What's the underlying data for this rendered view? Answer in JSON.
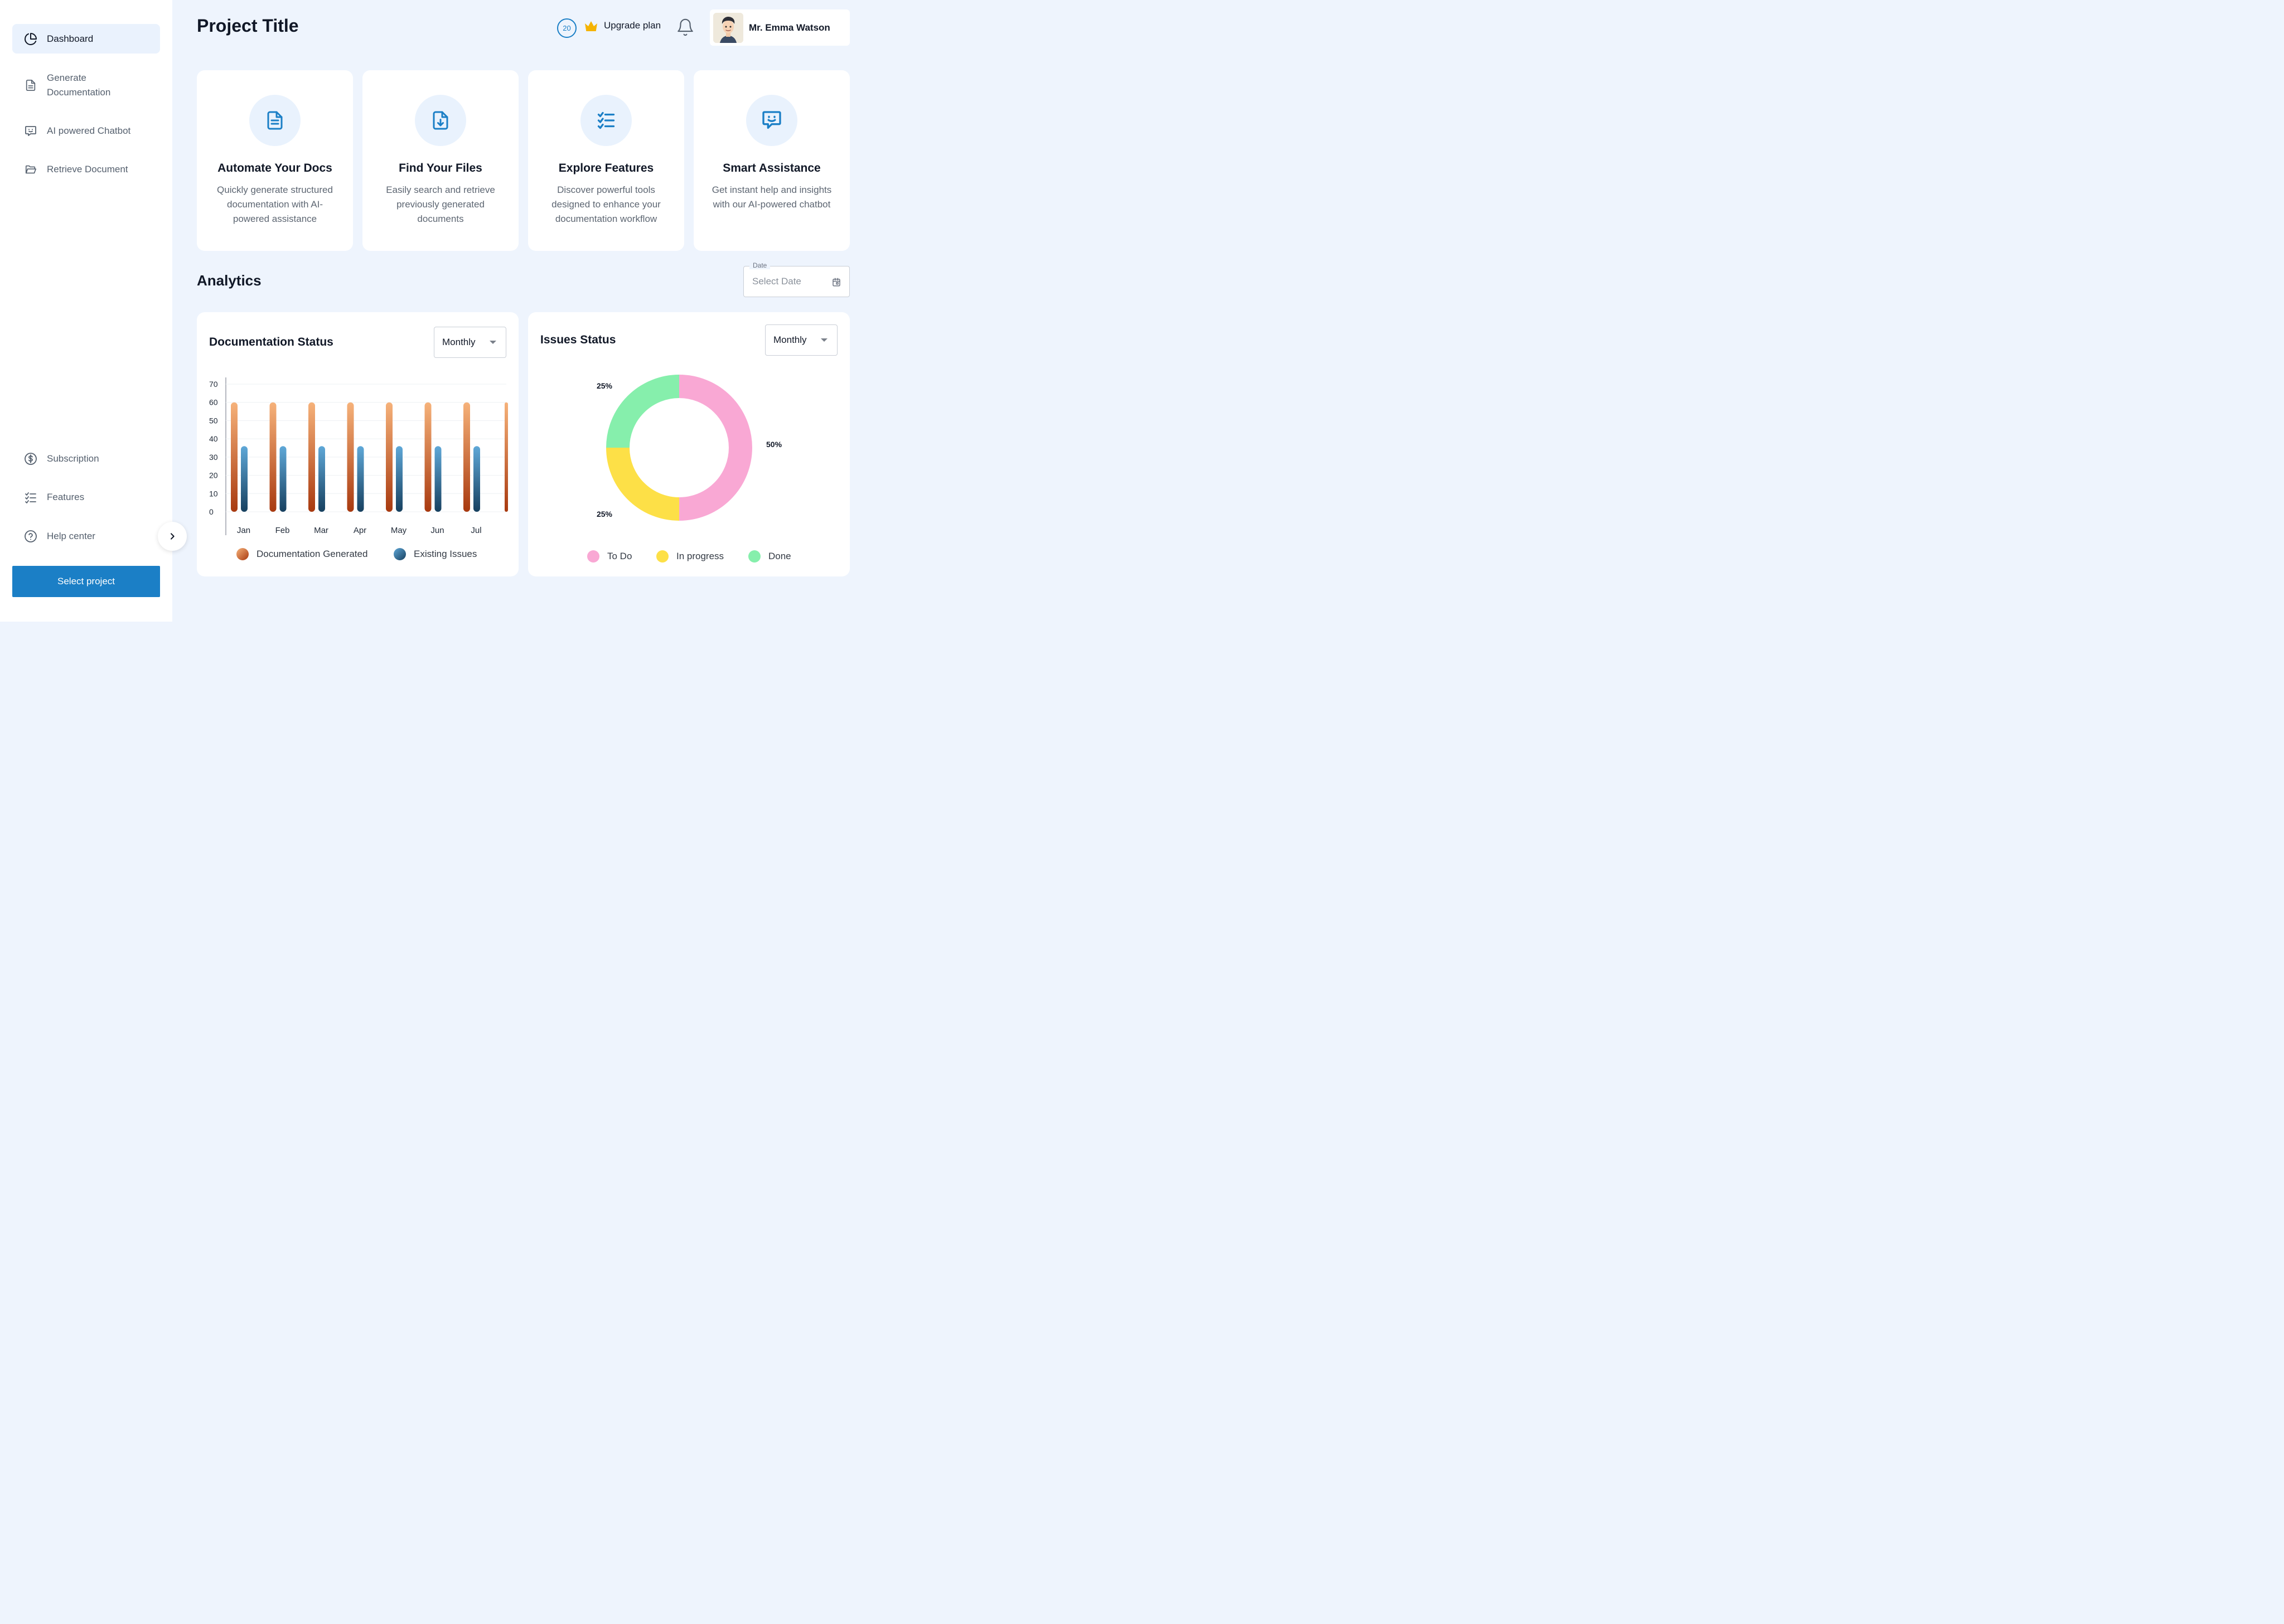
{
  "sidebar": {
    "items": [
      {
        "label": "Dashboard",
        "icon": "pie-chart-icon"
      },
      {
        "label": "Generate Documentation",
        "icon": "document-icon"
      },
      {
        "label": "AI powered Chatbot",
        "icon": "chat-smile-icon"
      },
      {
        "label": "Retrieve Document",
        "icon": "folder-open-icon"
      }
    ],
    "bottom_items": [
      {
        "label": "Subscription",
        "icon": "dollar-circle-icon"
      },
      {
        "label": "Features",
        "icon": "checklist-icon"
      },
      {
        "label": "Help center",
        "icon": "help-circle-icon"
      }
    ],
    "select_project_label": "Select project"
  },
  "header": {
    "title": "Project Title",
    "credits": "20",
    "upgrade_label": "Upgrade plan",
    "user_name": "Mr. Emma Watson"
  },
  "cards": [
    {
      "title": "Automate Your Docs",
      "desc": "Quickly generate structured documentation with AI-powered assistance",
      "icon": "document-icon"
    },
    {
      "title": "Find Your Files",
      "desc": "Easily search and retrieve previously generated documents",
      "icon": "file-download-icon"
    },
    {
      "title": "Explore Features",
      "desc": "Discover powerful tools designed to enhance your documentation workflow",
      "icon": "checklist-icon"
    },
    {
      "title": "Smart Assistance",
      "desc": "Get instant help and insights with our AI-powered chatbot",
      "icon": "chat-smile-icon"
    }
  ],
  "analytics": {
    "title": "Analytics",
    "date_label": "Date",
    "date_placeholder": "Select Date"
  },
  "doc_panel": {
    "title": "Documentation Status",
    "period": "Monthly"
  },
  "issues_panel": {
    "title": "Issues Status",
    "period": "Monthly"
  },
  "colors": {
    "accent": "#1b7fc6",
    "orange": "#e0803a",
    "blue": "#2f7fb5",
    "todo": "#f9a8d4",
    "in_progress": "#fde047",
    "done": "#86efac"
  },
  "chart_data": [
    {
      "type": "bar",
      "title": "Documentation Status",
      "categories": [
        "Jan",
        "Feb",
        "Mar",
        "Apr",
        "May",
        "Jun",
        "Jul"
      ],
      "ylim": [
        0,
        70
      ],
      "yticks": [
        0,
        10,
        20,
        30,
        40,
        50,
        60,
        70
      ],
      "series": [
        {
          "name": "Documentation Generated",
          "values": [
            60,
            60,
            60,
            60,
            60,
            60,
            60
          ]
        },
        {
          "name": "Existing Issues",
          "values": [
            36,
            36,
            36,
            36,
            36,
            36,
            36
          ]
        }
      ]
    },
    {
      "type": "pie",
      "title": "Issues Status",
      "labels": [
        "To Do",
        "In progress",
        "Done"
      ],
      "values": [
        50,
        25,
        25
      ],
      "value_labels": [
        "50%",
        "25%",
        "25%"
      ]
    }
  ]
}
